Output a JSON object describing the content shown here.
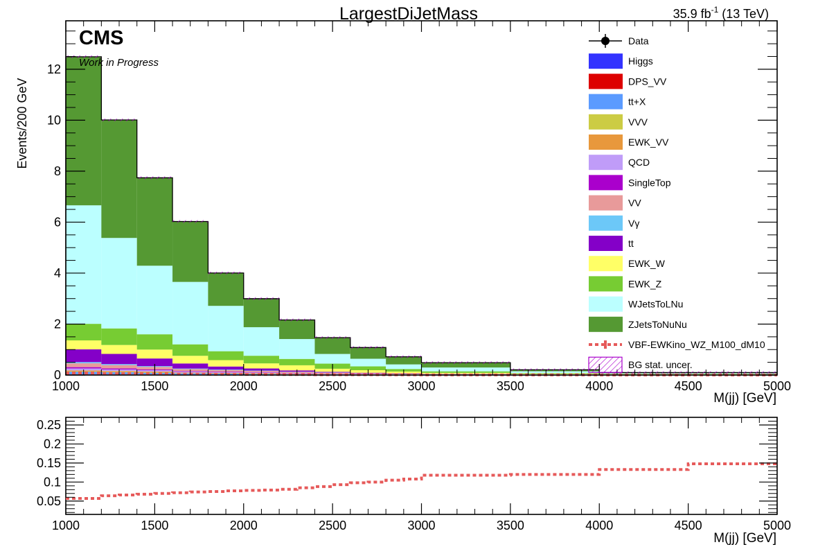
{
  "header": {
    "title": "LargestDiJetMass",
    "lumi_main": "35.9 fb",
    "lumi_sup": "-1",
    "lumi_tail": " (13 TeV)",
    "cms_label": "CMS",
    "cms_sub": "Work in Progress"
  },
  "chart_data": [
    {
      "type": "bar",
      "stacked": true,
      "xlabel": "M(jj) [GeV]",
      "ylabel": "Events/200 GeV",
      "xlim": [
        1000,
        5000
      ],
      "ylim": [
        0,
        13.9
      ],
      "yticks": [
        0,
        2,
        4,
        6,
        8,
        10,
        12
      ],
      "xticks": [
        1000,
        1500,
        2000,
        2500,
        3000,
        3500,
        4000,
        4500,
        5000
      ],
      "legend_position": "top-right",
      "bin_edges": [
        1000,
        1200,
        1400,
        1600,
        1800,
        2000,
        2200,
        2400,
        2600,
        2800,
        3000,
        3500,
        4000,
        5000
      ],
      "series": [
        {
          "name": "Higgs",
          "color": "#3333ff",
          "values": [
            0.02,
            0.02,
            0.02,
            0.01,
            0.01,
            0.01,
            0.01,
            0.005,
            0.005,
            0.003,
            0.002,
            0.001,
            0.001
          ]
        },
        {
          "name": "DPS_VV",
          "color": "#dd0000",
          "values": [
            0.01,
            0.01,
            0.01,
            0.005,
            0.005,
            0.003,
            0.003,
            0.002,
            0.002,
            0.001,
            0.001,
            0.001,
            0.0
          ]
        },
        {
          "name": "tt+X",
          "color": "#5b9bff",
          "values": [
            0.1,
            0.08,
            0.06,
            0.05,
            0.04,
            0.03,
            0.02,
            0.015,
            0.01,
            0.008,
            0.005,
            0.003,
            0.002
          ]
        },
        {
          "name": "VVV",
          "color": "#cccc44",
          "values": [
            0.02,
            0.02,
            0.02,
            0.01,
            0.01,
            0.01,
            0.005,
            0.005,
            0.003,
            0.002,
            0.002,
            0.001,
            0.001
          ]
        },
        {
          "name": "EWK_VV",
          "color": "#e8983c",
          "values": [
            0.03,
            0.03,
            0.03,
            0.02,
            0.02,
            0.02,
            0.015,
            0.01,
            0.01,
            0.008,
            0.005,
            0.003,
            0.002
          ]
        },
        {
          "name": "QCD",
          "color": "#c09cf8",
          "values": [
            0.08,
            0.06,
            0.05,
            0.04,
            0.03,
            0.025,
            0.02,
            0.015,
            0.01,
            0.008,
            0.005,
            0.003,
            0.002
          ]
        },
        {
          "name": "SingleTop",
          "color": "#aa00cc",
          "values": [
            0.05,
            0.04,
            0.03,
            0.02,
            0.02,
            0.015,
            0.01,
            0.008,
            0.005,
            0.004,
            0.003,
            0.002,
            0.001
          ]
        },
        {
          "name": "VV",
          "color": "#e89a9a",
          "values": [
            0.15,
            0.13,
            0.1,
            0.08,
            0.06,
            0.05,
            0.04,
            0.03,
            0.02,
            0.015,
            0.01,
            0.006,
            0.004
          ]
        },
        {
          "name": "Vγ",
          "color": "#6cc8f8",
          "values": [
            0.05,
            0.04,
            0.03,
            0.02,
            0.02,
            0.015,
            0.01,
            0.008,
            0.005,
            0.004,
            0.003,
            0.002,
            0.001
          ]
        },
        {
          "name": "tt",
          "color": "#8400c8",
          "values": [
            0.5,
            0.4,
            0.3,
            0.2,
            0.12,
            0.08,
            0.05,
            0.03,
            0.02,
            0.015,
            0.01,
            0.005,
            0.003
          ]
        },
        {
          "name": "EWK_W",
          "color": "#ffff66",
          "values": [
            0.35,
            0.35,
            0.35,
            0.3,
            0.25,
            0.2,
            0.2,
            0.12,
            0.1,
            0.07,
            0.04,
            0.02,
            0.01
          ]
        },
        {
          "name": "EWK_Z",
          "color": "#77cc33",
          "values": [
            0.65,
            0.65,
            0.6,
            0.45,
            0.35,
            0.3,
            0.25,
            0.2,
            0.15,
            0.1,
            0.06,
            0.03,
            0.02
          ]
        },
        {
          "name": "WJetsToLNu",
          "color": "#bbffff",
          "values": [
            4.65,
            3.55,
            2.69,
            2.45,
            1.78,
            1.12,
            0.78,
            0.38,
            0.3,
            0.18,
            0.15,
            0.07,
            0.03
          ]
        },
        {
          "name": "ZJetsToNuNu",
          "color": "#559933",
          "values": [
            5.83,
            4.63,
            3.45,
            2.37,
            1.29,
            1.12,
            0.75,
            0.64,
            0.44,
            0.3,
            0.19,
            0.06,
            0.02
          ]
        }
      ],
      "signal": {
        "name": "VBF-EWKino_WZ_M100_dM10",
        "color": "#e65a5a",
        "values": [
          0.08,
          0.06,
          0.05,
          0.04,
          0.03,
          0.025,
          0.02,
          0.015,
          0.012,
          0.01,
          0.008,
          0.006,
          0.004
        ]
      },
      "data_entry": {
        "name": "Data"
      },
      "uncertainty_entry": {
        "name": "BG stat. uncer.",
        "color": "#aa00cc"
      }
    },
    {
      "type": "line",
      "xlabel": "M(jj) [GeV]",
      "ylabel": "",
      "xlim": [
        1000,
        5000
      ],
      "ylim": [
        0.015,
        0.27
      ],
      "yticks": [
        0.05,
        0.1,
        0.15,
        0.2,
        0.25
      ],
      "ytick_labels": [
        "0.05",
        "0.1",
        "0.15",
        "0.2",
        "0.25"
      ],
      "xticks": [
        1000,
        1500,
        2000,
        2500,
        3000,
        3500,
        4000,
        4500,
        5000
      ],
      "bin_edges": [
        1000,
        1100,
        1200,
        1300,
        1400,
        1500,
        1600,
        1700,
        1800,
        1900,
        2000,
        2100,
        2200,
        2300,
        2400,
        2500,
        2600,
        2700,
        2800,
        2900,
        3000,
        3500,
        4000,
        4500,
        5000
      ],
      "series": [
        {
          "name": "VBF-EWKino_WZ_M100_dM10",
          "color": "#e65a5a",
          "values": [
            0.057,
            0.057,
            0.064,
            0.066,
            0.068,
            0.07,
            0.072,
            0.074,
            0.075,
            0.077,
            0.078,
            0.079,
            0.081,
            0.085,
            0.088,
            0.093,
            0.098,
            0.1,
            0.105,
            0.108,
            0.118,
            0.12,
            0.133,
            0.148,
            0.168
          ]
        }
      ]
    }
  ]
}
